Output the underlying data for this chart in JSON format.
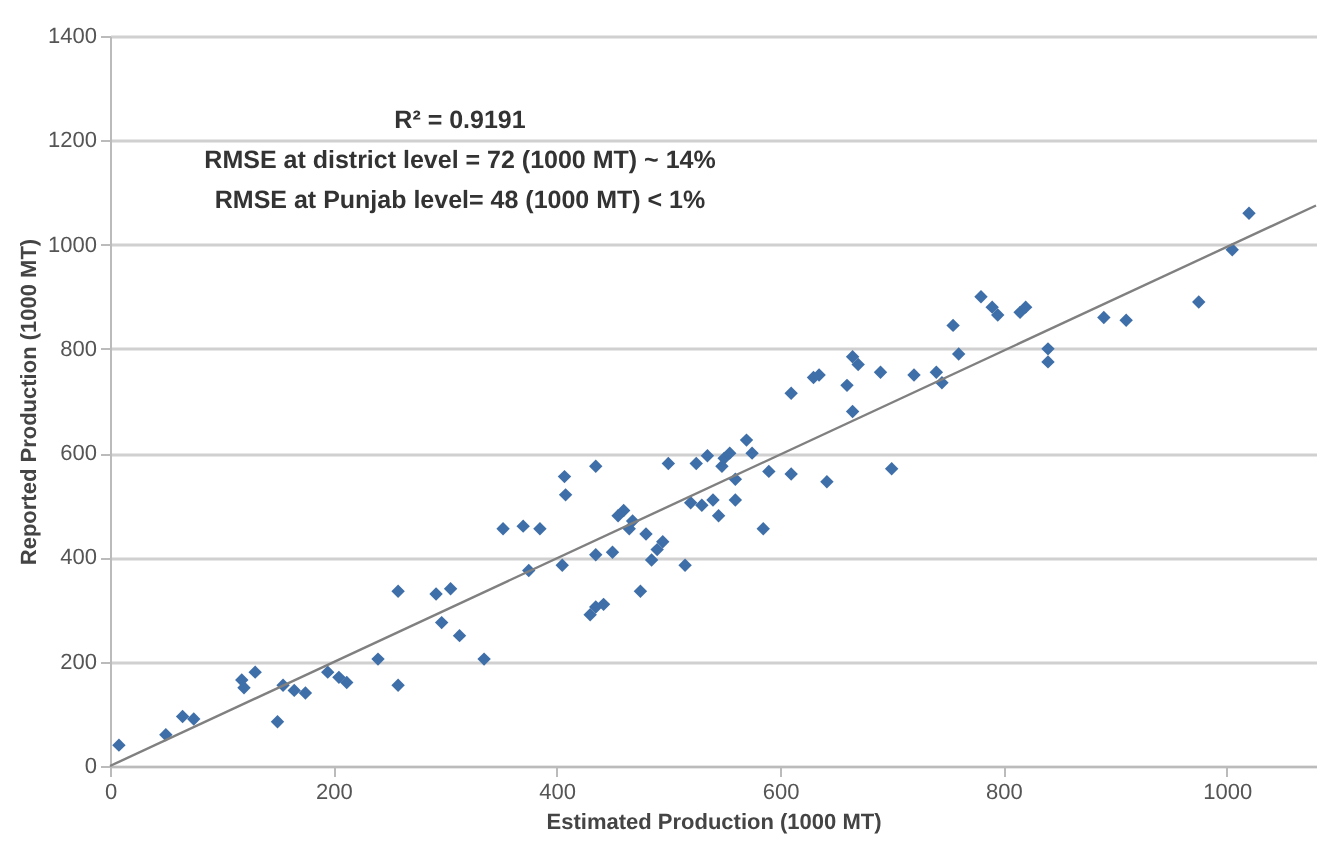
{
  "chart_data": {
    "type": "scatter",
    "xlabel": "Estimated Production (1000 MT)",
    "ylabel": "Reported Production (1000 MT)",
    "annotations": [
      "R² = 0.9191",
      "RMSE at district level = 72 (1000 MT) ~ 14%",
      "RMSE at Punjab level= 48 (1000 MT)   < 1%"
    ],
    "xlim": [
      0,
      1080
    ],
    "xticks": [
      0,
      200,
      400,
      600,
      800,
      {
        "value": 1000,
        "label": "1000"
      }
    ],
    "ylim": [
      0,
      1400
    ],
    "yticks": [
      0,
      200,
      400,
      600,
      800,
      {
        "value": 1000,
        "label": "1000"
      },
      {
        "value": 1200,
        "label": "1200"
      },
      {
        "value": 1400,
        "label": "1400"
      }
    ],
    "grid": "y",
    "marker": "diamond",
    "series": [
      {
        "color": "#3f6fa8",
        "x": [
          8,
          50,
          65,
          75,
          118,
          120,
          130,
          150,
          155,
          165,
          175,
          195,
          205,
          212,
          240,
          258,
          258,
          292,
          297,
          305,
          313,
          335,
          352,
          370,
          375,
          385,
          405,
          407,
          408,
          430,
          435,
          442,
          435,
          435,
          450,
          455,
          460,
          465,
          468,
          475,
          480,
          485,
          490,
          495,
          500,
          515,
          520,
          525,
          530,
          535,
          540,
          545,
          548,
          550,
          555,
          560,
          560,
          570,
          575,
          585,
          590,
          610,
          610,
          630,
          635,
          642,
          660,
          665,
          665,
          670,
          690,
          700,
          720,
          740,
          745,
          755,
          760,
          780,
          790,
          795,
          815,
          820,
          840,
          840,
          890,
          910,
          975,
          1005,
          1020
        ],
        "values": [
          40,
          60,
          95,
          90,
          165,
          150,
          180,
          85,
          155,
          145,
          140,
          180,
          170,
          160,
          205,
          335,
          155,
          330,
          275,
          340,
          250,
          205,
          455,
          460,
          375,
          455,
          385,
          555,
          520,
          290,
          305,
          310,
          405,
          575,
          410,
          480,
          490,
          455,
          470,
          335,
          445,
          395,
          415,
          430,
          580,
          385,
          505,
          580,
          500,
          595,
          510,
          480,
          575,
          590,
          600,
          510,
          550,
          625,
          600,
          455,
          565,
          715,
          560,
          745,
          750,
          545,
          730,
          680,
          785,
          770,
          755,
          570,
          750,
          755,
          735,
          845,
          790,
          900,
          880,
          865,
          870,
          880,
          800,
          775,
          860,
          855,
          890,
          990,
          1060
        ]
      },
      {
        "type": "line",
        "marker": "none",
        "color": "#808080",
        "x": [
          0,
          1080
        ],
        "values": [
          0,
          1075
        ]
      }
    ]
  }
}
